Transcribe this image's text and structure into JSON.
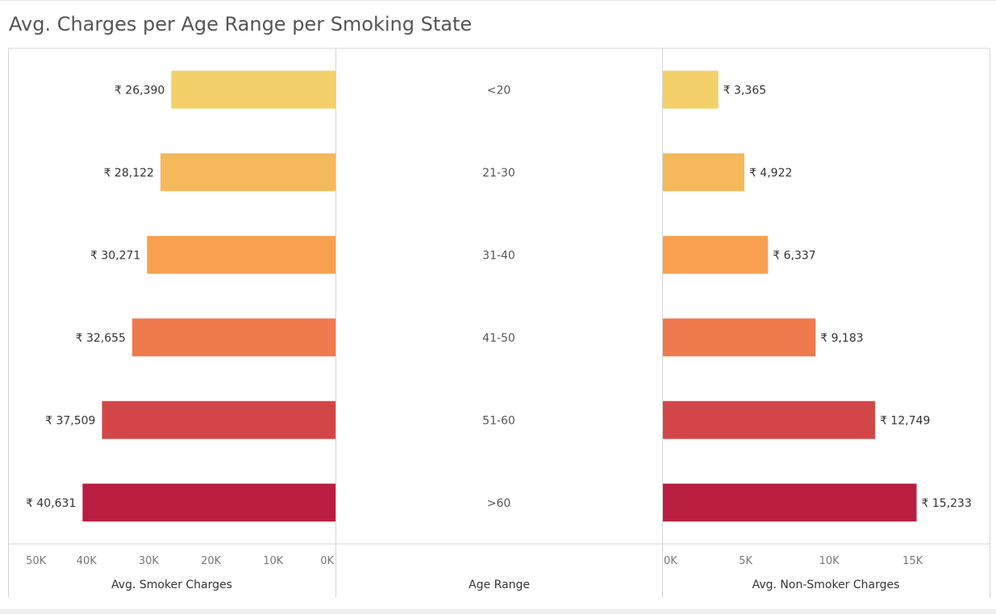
{
  "chart_data": {
    "type": "bar",
    "title": "Avg. Charges per Age Range per Smoking State",
    "categories": [
      "<20",
      "21-30",
      "31-40",
      "41-50",
      "51-60",
      ">60"
    ],
    "category_axis_label": "Age Range",
    "colors": [
      "#F3D069",
      "#F4B95B",
      "#F8A04F",
      "#EF7A4E",
      "#D34648",
      "#B91E40"
    ],
    "series": [
      {
        "name": "Avg. Smoker Charges",
        "values": [
          26390,
          28122,
          30271,
          32655,
          37509,
          40631
        ],
        "value_labels": [
          "₹ 26,390",
          "₹ 28,122",
          "₹ 30,271",
          "₹ 32,655",
          "₹ 37,509",
          "₹ 40,631"
        ],
        "axis_label": "Avg. Smoker Charges",
        "direction": "reversed",
        "xlim": [
          0,
          52600
        ],
        "ticks": [
          0,
          10000,
          20000,
          30000,
          40000,
          50000
        ],
        "tick_labels": [
          "0K",
          "10K",
          "20K",
          "30K",
          "40K",
          "50K"
        ]
      },
      {
        "name": "Avg. Non-Smoker Charges",
        "values": [
          3365,
          4922,
          6337,
          9183,
          12749,
          15233
        ],
        "value_labels": [
          "₹ 3,365",
          "₹ 4,922",
          "₹ 6,337",
          "₹ 9,183",
          "₹ 12,749",
          "₹ 15,233"
        ],
        "axis_label": "Avg. Non-Smoker Charges",
        "direction": "normal",
        "xlim": [
          0,
          19600
        ],
        "ticks": [
          0,
          5000,
          10000,
          15000
        ],
        "tick_labels": [
          "0K",
          "5K",
          "10K",
          "15K"
        ]
      }
    ],
    "grid": false,
    "legend": "none"
  }
}
